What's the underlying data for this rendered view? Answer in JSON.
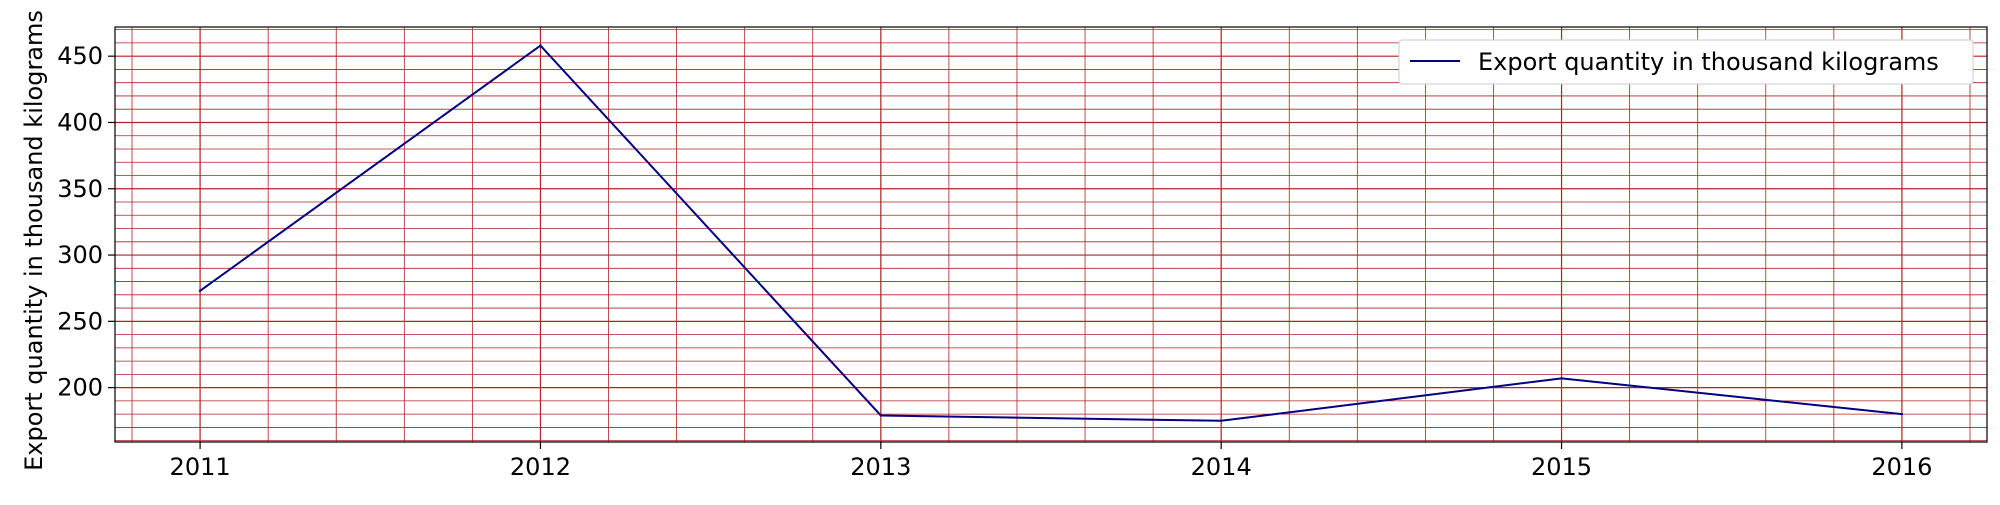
{
  "chart_data": {
    "type": "line",
    "title": "",
    "xlabel": "",
    "ylabel": "Export quantity in thousand kilograms",
    "x": [
      2011,
      2012,
      2013,
      2014,
      2015,
      2016
    ],
    "series": [
      {
        "name": "Export quantity in thousand kilograms",
        "values": [
          273,
          458,
          179,
          175,
          207,
          180
        ],
        "color": "#000080"
      }
    ],
    "xlim": [
      2010.75,
      2016.25
    ],
    "ylim": [
      159,
      472
    ],
    "xticks": [
      "2011",
      "2012",
      "2013",
      "2014",
      "2015",
      "2016"
    ],
    "yticks": [
      200,
      250,
      300,
      350,
      400,
      450
    ],
    "grid": true,
    "grid_color": "#b22222",
    "legend_position": "top-right"
  }
}
